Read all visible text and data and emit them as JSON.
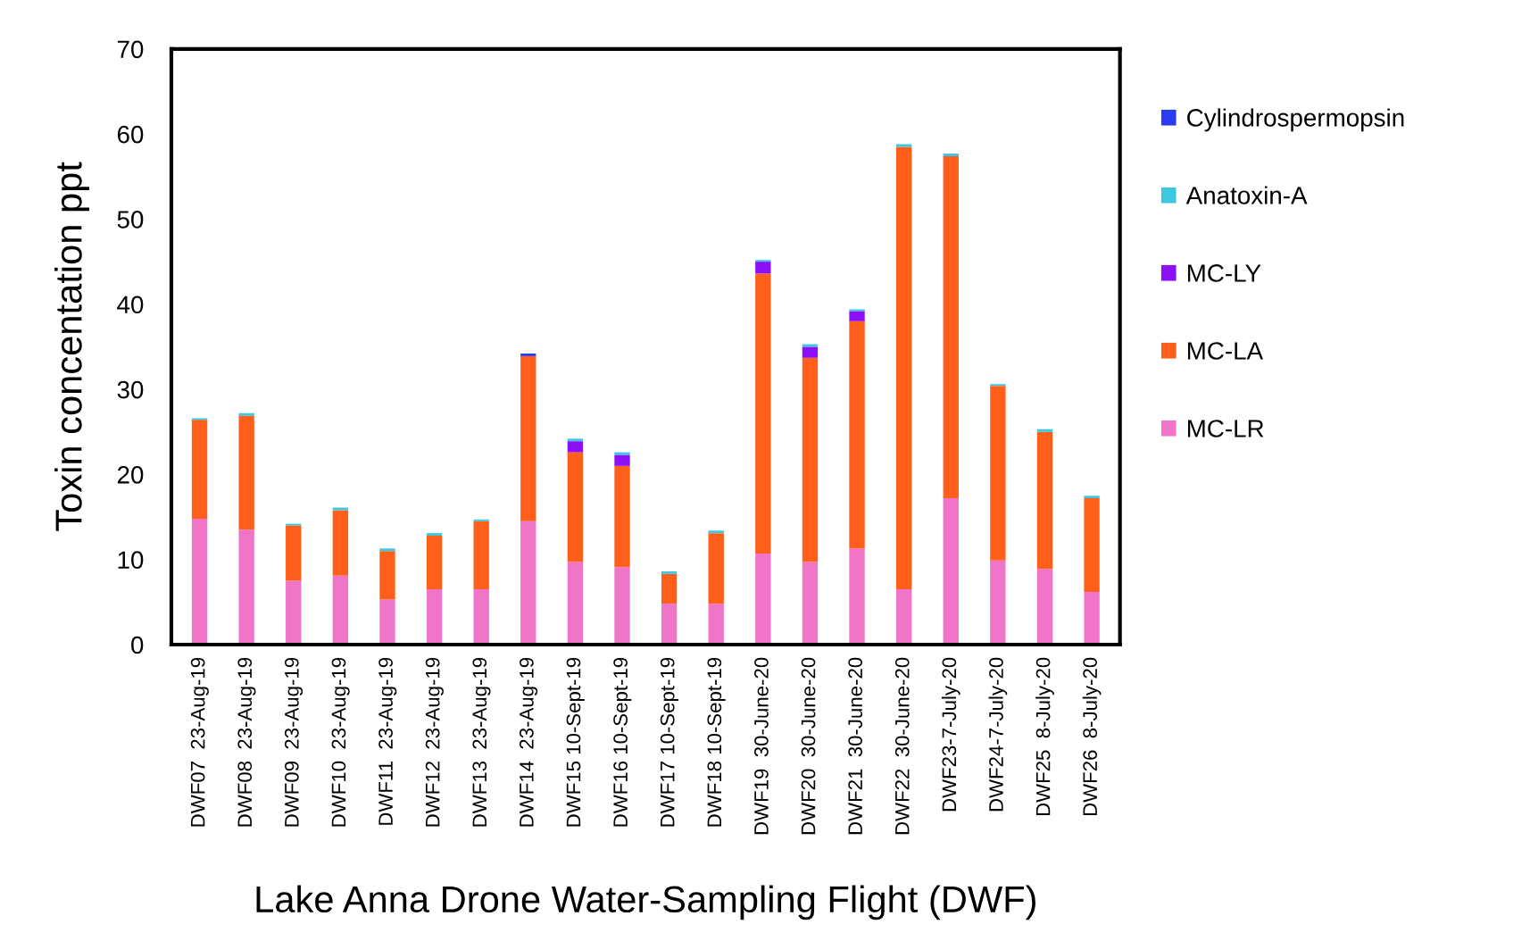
{
  "chart_data": {
    "type": "bar",
    "stacked": true,
    "xlabel": "Lake Anna Drone Water-Sampling Flight (DWF)",
    "ylabel": "Toxin concentation ppt",
    "categories": [
      "DWF07  23-Aug-19",
      "DWF08  23-Aug-19",
      "DWF09  23-Aug-19",
      "DWF10  23-Aug-19",
      "DWF11  23-Aug-19",
      "DWF12  23-Aug-19",
      "DWF13  23-Aug-19",
      "DWF14  23-Aug-19",
      "DWF15 10-Sept-19",
      "DWF16 10-Sept-19",
      "DWF17 10-Sept-19",
      "DWF18 10-Sept-19",
      "DWF19  30-June-20",
      "DWF20  30-June-20",
      "DWF21  30-June-20",
      "DWF22  30-June-20",
      "DWF23-7-July-20",
      "DWF24-7-July-20",
      "DWF25  8-July-20",
      "DWF26  8-July-20"
    ],
    "series": [
      {
        "name": "MC-LR",
        "color": "#f075c8",
        "values": [
          14.8,
          13.5,
          7.5,
          8.1,
          5.3,
          6.5,
          6.5,
          14.5,
          9.7,
          9.1,
          4.8,
          4.8,
          10.7,
          9.7,
          11.3,
          6.5,
          17.2,
          9.9,
          8.9,
          6.2
        ]
      },
      {
        "name": "MC-LA",
        "color": "#ff5f1a",
        "values": [
          11.6,
          13.4,
          6.5,
          7.7,
          5.7,
          6.3,
          8.0,
          19.4,
          12.9,
          11.9,
          3.5,
          8.3,
          32.9,
          24.0,
          26.7,
          52.0,
          40.2,
          20.5,
          16.1,
          11.0
        ]
      },
      {
        "name": "MC-LY",
        "color": "#8b10f5",
        "values": [
          0,
          0,
          0,
          0,
          0,
          0,
          0,
          0,
          1.3,
          1.3,
          0,
          0,
          1.4,
          1.3,
          1.2,
          0,
          0,
          0,
          0,
          0
        ]
      },
      {
        "name": "Anatoxin-A",
        "color": "#3ec8e0",
        "values": [
          0.2,
          0.3,
          0.2,
          0.3,
          0.3,
          0.3,
          0.2,
          0,
          0.3,
          0.3,
          0.3,
          0.3,
          0.2,
          0.3,
          0.2,
          0.3,
          0.3,
          0.2,
          0.3,
          0.3
        ]
      },
      {
        "name": "Cylindrospermopsin",
        "color": "#2b3cf0",
        "values": [
          0,
          0,
          0,
          0,
          0,
          0,
          0,
          0.3,
          0,
          0,
          0,
          0,
          0,
          0,
          0,
          0,
          0,
          0,
          0,
          0
        ]
      }
    ],
    "ylim": [
      0,
      70
    ],
    "yticks": [
      0,
      10,
      20,
      30,
      40,
      50,
      60,
      70
    ],
    "grid": false,
    "legend": "right"
  }
}
